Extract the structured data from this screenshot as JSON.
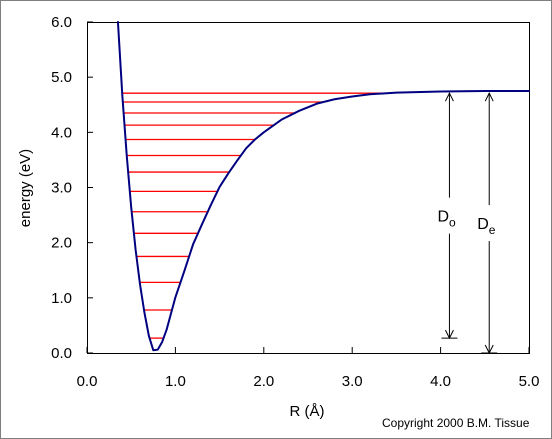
{
  "chart_data": {
    "type": "line",
    "title": "",
    "xlabel": "R (Å)",
    "ylabel": "energy (eV)",
    "xlim": [
      0.0,
      5.0
    ],
    "ylim": [
      0.0,
      6.0
    ],
    "x_ticks": [
      "0.0",
      "1.0",
      "2.0",
      "3.0",
      "4.0",
      "5.0"
    ],
    "y_ticks": [
      "0.0",
      "1.0",
      "2.0",
      "3.0",
      "4.0",
      "5.0",
      "6.0"
    ],
    "grid": false,
    "series": [
      {
        "color": "#000080",
        "points": [
          [
            0.35,
            6.0
          ],
          [
            0.4,
            4.66
          ],
          [
            0.45,
            3.57
          ],
          [
            0.5,
            2.64
          ],
          [
            0.55,
            1.87
          ],
          [
            0.6,
            1.24
          ],
          [
            0.65,
            0.73
          ],
          [
            0.7,
            0.31
          ],
          [
            0.75,
            0.05
          ],
          [
            0.8,
            0.06
          ],
          [
            0.85,
            0.2
          ],
          [
            0.9,
            0.42
          ],
          [
            1.0,
            1.01
          ],
          [
            1.1,
            1.48
          ],
          [
            1.2,
            1.97
          ],
          [
            1.3,
            2.33
          ],
          [
            1.4,
            2.68
          ],
          [
            1.5,
            3.01
          ],
          [
            1.6,
            3.26
          ],
          [
            1.7,
            3.49
          ],
          [
            1.8,
            3.71
          ],
          [
            1.9,
            3.87
          ],
          [
            2.0,
            4.0
          ],
          [
            2.2,
            4.23
          ],
          [
            2.4,
            4.39
          ],
          [
            2.6,
            4.52
          ],
          [
            2.8,
            4.6
          ],
          [
            3.0,
            4.65
          ],
          [
            3.2,
            4.69
          ],
          [
            3.5,
            4.72
          ],
          [
            4.0,
            4.74
          ],
          [
            4.5,
            4.75
          ],
          [
            5.0,
            4.75
          ]
        ]
      }
    ],
    "vibrational_levels": {
      "color": "#ff0000",
      "energies": [
        0.27,
        0.78,
        1.28,
        1.75,
        2.17,
        2.56,
        2.93,
        3.28,
        3.58,
        3.87,
        4.13,
        4.35,
        4.55,
        4.71
      ]
    },
    "annotations": [
      {
        "name": "D0",
        "label": "D",
        "subscript": "o",
        "x": 4.1,
        "from": 0.27,
        "to": 4.71
      },
      {
        "name": "De",
        "label": "D",
        "subscript": "e",
        "x": 4.55,
        "from": 0.0,
        "to": 4.71
      }
    ],
    "credit": "Copyright 2000 B.M. Tissue"
  }
}
